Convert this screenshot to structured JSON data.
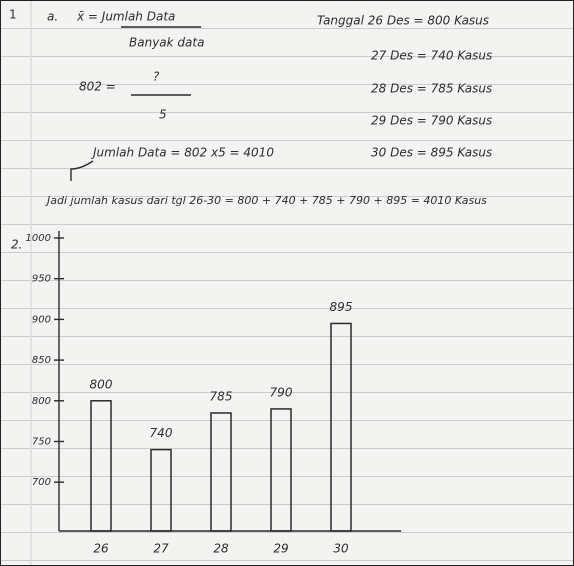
{
  "notes": {
    "number": "1",
    "part": "a.",
    "mean_formula": "x̄ = Jumlah Data",
    "mean_denominator": "Banyak data",
    "equation_left": "802 =",
    "equation_numerator": "?",
    "equation_denominator": "5",
    "total_line": "Jumlah Data = 802 x5 = 4010",
    "dates": [
      "Tanggal 26 Des = 800 Kasus",
      "27 Des = 740 Kasus",
      "28 Des = 785 Kasus",
      "29 Des = 790 Kasus",
      "30 Des = 895 Kasus"
    ],
    "conclusion": "Jadi jumlah kasus dari tgl 26-30 = 800 + 740 + 785 + 790 + 895 = 4010 Kasus",
    "part_two": "2."
  },
  "chart_data": {
    "type": "bar",
    "categories": [
      "26",
      "27",
      "28",
      "29",
      "30"
    ],
    "values": [
      800,
      740,
      785,
      790,
      895
    ],
    "color": "#2b2b2b",
    "ylim": [
      640,
      1000
    ],
    "yticks": [
      700,
      750,
      800,
      850,
      900,
      950,
      1000
    ],
    "grid": false
  }
}
